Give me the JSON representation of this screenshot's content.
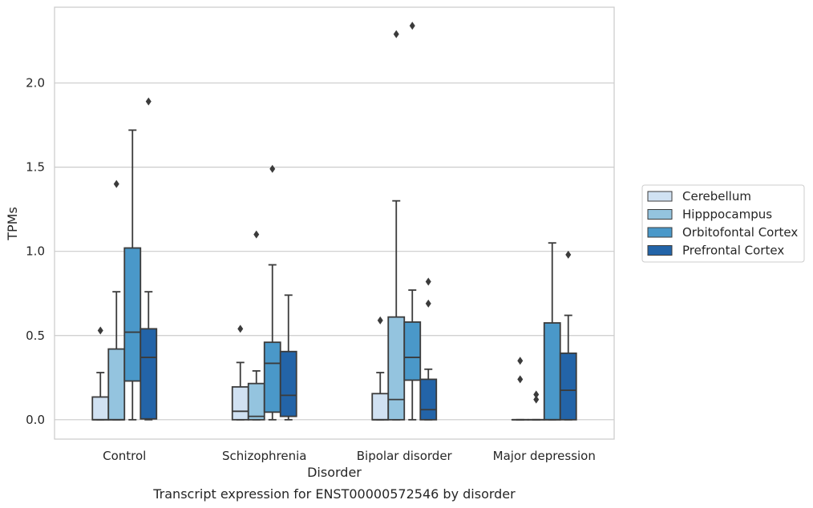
{
  "chart_data": {
    "type": "box",
    "title": "",
    "caption": "Transcript expression for ENST00000572546 by disorder",
    "xlabel": "Disorder",
    "ylabel": "TPMs",
    "ylim": [
      -0.115,
      2.45
    ],
    "yticks": [
      "0.0",
      "0.5",
      "1.0",
      "1.5",
      "2.0"
    ],
    "grid": "horizontal",
    "legend_position": "right",
    "categories": [
      "Control",
      "Schizophrenia",
      "Bipolar disorder",
      "Major depression"
    ],
    "series": [
      {
        "name": "Cerebellum",
        "color": "#d0e1f2",
        "boxes": [
          {
            "whisker_low": 0.0,
            "q1": 0.0,
            "median": 0.0,
            "q3": 0.135,
            "whisker_high": 0.28,
            "outliers": [
              0.53
            ]
          },
          {
            "whisker_low": 0.0,
            "q1": 0.0,
            "median": 0.05,
            "q3": 0.195,
            "whisker_high": 0.34,
            "outliers": [
              0.54
            ]
          },
          {
            "whisker_low": 0.0,
            "q1": 0.0,
            "median": 0.0,
            "q3": 0.155,
            "whisker_high": 0.28,
            "outliers": [
              0.59
            ]
          },
          {
            "whisker_low": 0.0,
            "q1": 0.0,
            "median": 0.0,
            "q3": 0.0,
            "whisker_high": 0.0,
            "outliers": [
              0.24,
              0.35
            ]
          }
        ]
      },
      {
        "name": "Hipppocampus",
        "color": "#94c4df",
        "boxes": [
          {
            "whisker_low": 0.0,
            "q1": 0.0,
            "median": 0.0,
            "q3": 0.42,
            "whisker_high": 0.76,
            "outliers": [
              1.4
            ]
          },
          {
            "whisker_low": 0.0,
            "q1": 0.0,
            "median": 0.02,
            "q3": 0.215,
            "whisker_high": 0.29,
            "outliers": [
              1.1
            ]
          },
          {
            "whisker_low": 0.0,
            "q1": 0.0,
            "median": 0.12,
            "q3": 0.61,
            "whisker_high": 1.3,
            "outliers": [
              2.29
            ]
          },
          {
            "whisker_low": 0.0,
            "q1": 0.0,
            "median": 0.0,
            "q3": 0.0,
            "whisker_high": 0.0,
            "outliers": [
              0.12,
              0.15
            ]
          }
        ]
      },
      {
        "name": "Orbitofontal Cortex",
        "color": "#4a98c9",
        "boxes": [
          {
            "whisker_low": 0.0,
            "q1": 0.23,
            "median": 0.52,
            "q3": 1.02,
            "whisker_high": 1.72,
            "outliers": []
          },
          {
            "whisker_low": 0.0,
            "q1": 0.045,
            "median": 0.335,
            "q3": 0.46,
            "whisker_high": 0.92,
            "outliers": [
              1.49
            ]
          },
          {
            "whisker_low": 0.0,
            "q1": 0.235,
            "median": 0.37,
            "q3": 0.58,
            "whisker_high": 0.77,
            "outliers": [
              2.34
            ]
          },
          {
            "whisker_low": 0.0,
            "q1": 0.0,
            "median": 0.0,
            "q3": 0.575,
            "whisker_high": 1.05,
            "outliers": []
          }
        ]
      },
      {
        "name": "Prefrontal Cortex",
        "color": "#2364a8",
        "boxes": [
          {
            "whisker_low": 0.0,
            "q1": 0.005,
            "median": 0.37,
            "q3": 0.54,
            "whisker_high": 0.76,
            "outliers": [
              1.89
            ]
          },
          {
            "whisker_low": 0.0,
            "q1": 0.02,
            "median": 0.145,
            "q3": 0.405,
            "whisker_high": 0.74,
            "outliers": []
          },
          {
            "whisker_low": 0.0,
            "q1": 0.0,
            "median": 0.06,
            "q3": 0.24,
            "whisker_high": 0.3,
            "outliers": [
              0.69,
              0.82
            ]
          },
          {
            "whisker_low": 0.0,
            "q1": 0.0,
            "median": 0.175,
            "q3": 0.395,
            "whisker_high": 0.62,
            "outliers": [
              0.98
            ]
          }
        ]
      }
    ]
  }
}
